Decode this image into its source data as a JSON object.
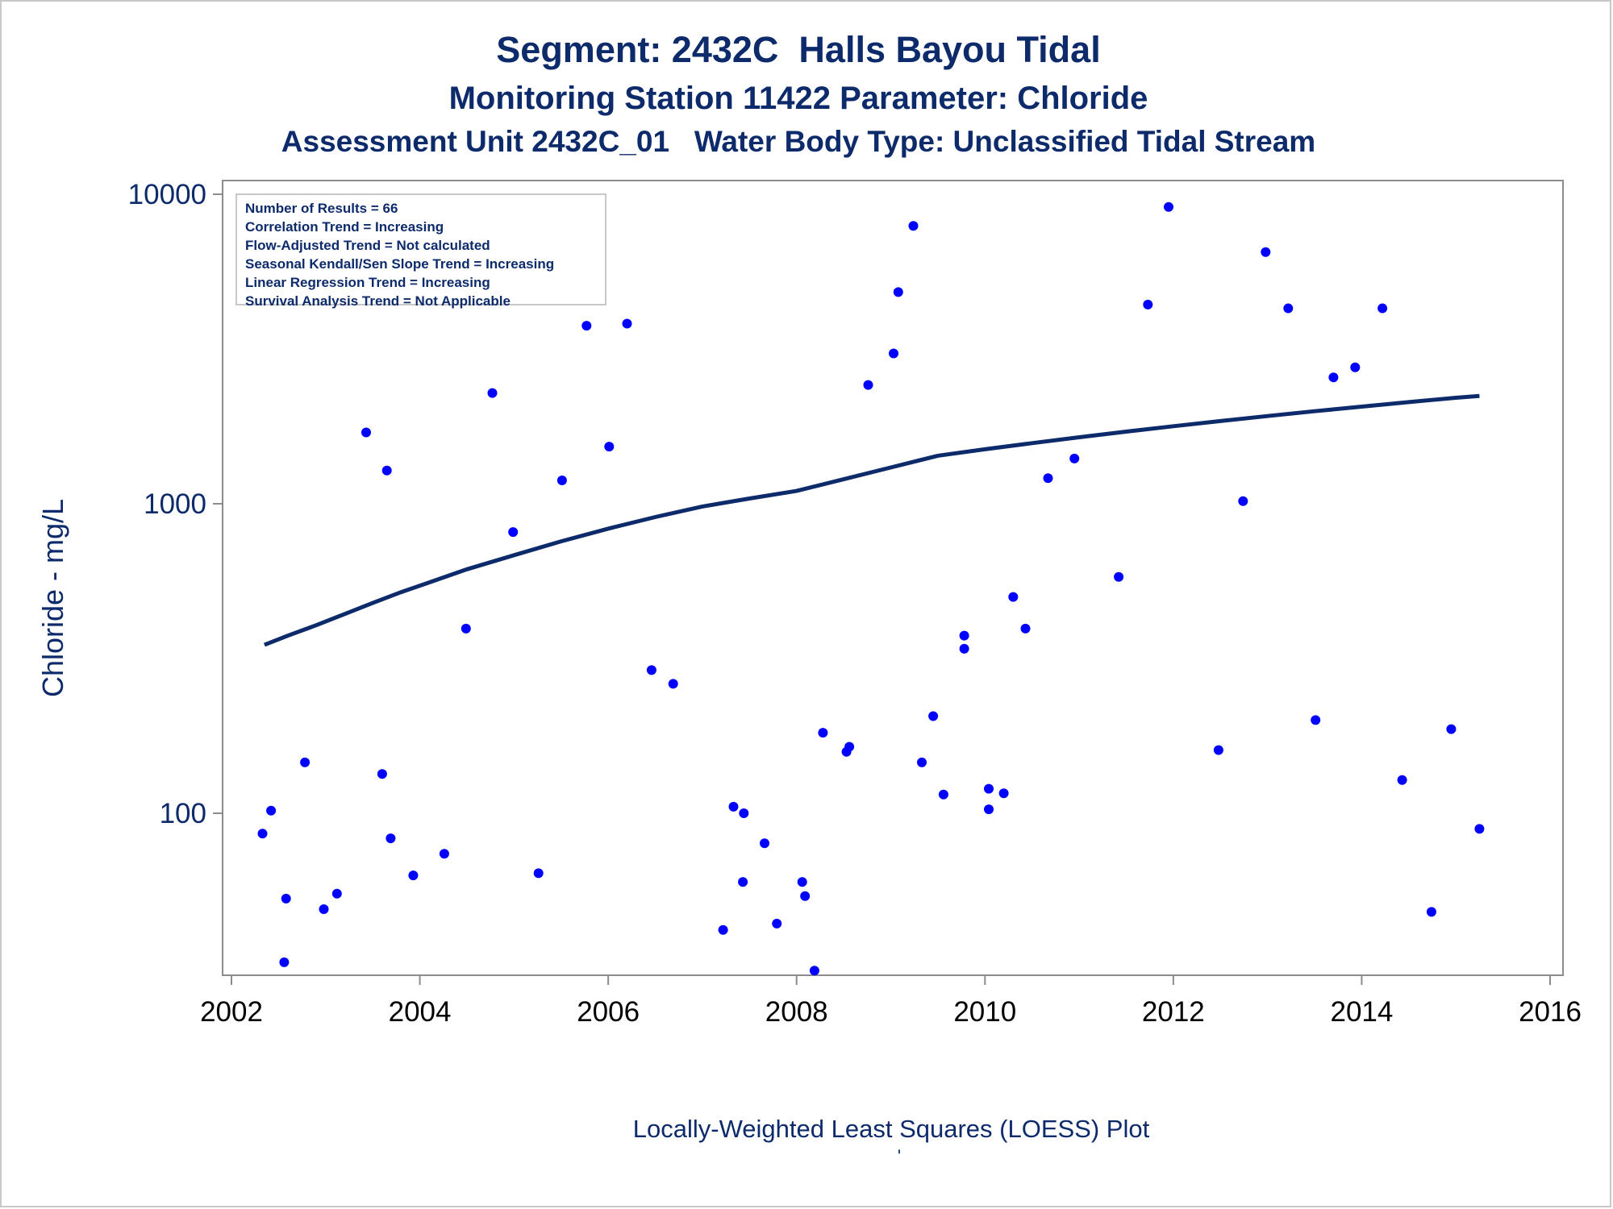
{
  "chart_data": {
    "type": "scatter",
    "title": "Segment: 2432C  Halls Bayou Tidal",
    "subtitle": "Monitoring Station 11422 Parameter: Chloride",
    "subtitle2": "Assessment Unit 2432C_01   Water Body Type: Unclassified Tidal Stream",
    "xlabel": "Locally-Weighted Least Squares (LOESS) Plot",
    "ylabel": "Chloride - mg/L",
    "footnote": "'",
    "xlim": [
      2001.95,
      2016
    ],
    "ylim": [
      32,
      10000
    ],
    "y_scale": "log",
    "x_ticks": [
      2002,
      2004,
      2006,
      2008,
      2010,
      2012,
      2014,
      2016
    ],
    "y_ticks": [
      100,
      1000,
      10000
    ],
    "legend_lines": [
      "Number of Results = 66",
      "Correlation Trend = Increasing",
      "Flow-Adjusted Trend = Not calculated",
      "Seasonal Kendall/Sen Slope Trend = Increasing",
      "Linear Regression Trend = Increasing",
      "Survival Analysis Trend = Not Applicable"
    ],
    "legend_position": "top-left",
    "grid": false,
    "colors": {
      "points": "#0000ff",
      "line": "#0d2a6b",
      "axis": "#8c8c8c",
      "text": "#0d2a6b"
    },
    "points": [
      [
        2002.33,
        86
      ],
      [
        2002.42,
        102
      ],
      [
        2002.56,
        33
      ],
      [
        2002.58,
        53
      ],
      [
        2002.78,
        146
      ],
      [
        2002.98,
        49
      ],
      [
        2003.12,
        55
      ],
      [
        2003.43,
        1700
      ],
      [
        2003.6,
        134
      ],
      [
        2003.65,
        1280
      ],
      [
        2003.69,
        83
      ],
      [
        2003.93,
        63
      ],
      [
        2004.26,
        74
      ],
      [
        2004.49,
        395
      ],
      [
        2004.77,
        2280
      ],
      [
        2004.99,
        810
      ],
      [
        2005.26,
        64
      ],
      [
        2005.51,
        1190
      ],
      [
        2005.77,
        3760
      ],
      [
        2006.01,
        1530
      ],
      [
        2006.2,
        3820
      ],
      [
        2006.46,
        290
      ],
      [
        2006.69,
        262
      ],
      [
        2007.22,
        42
      ],
      [
        2007.33,
        105
      ],
      [
        2007.43,
        60
      ],
      [
        2007.44,
        100
      ],
      [
        2007.66,
        80
      ],
      [
        2007.79,
        44
      ],
      [
        2008.06,
        60
      ],
      [
        2008.09,
        54
      ],
      [
        2008.19,
        31
      ],
      [
        2008.28,
        182
      ],
      [
        2008.53,
        158
      ],
      [
        2008.56,
        164
      ],
      [
        2008.76,
        2420
      ],
      [
        2009.03,
        3060
      ],
      [
        2009.08,
        4830
      ],
      [
        2009.24,
        7900
      ],
      [
        2009.33,
        146
      ],
      [
        2009.45,
        206
      ],
      [
        2009.56,
        115
      ],
      [
        2009.78,
        375
      ],
      [
        2009.78,
        340
      ],
      [
        2010.04,
        120
      ],
      [
        2010.04,
        103
      ],
      [
        2010.2,
        116
      ],
      [
        2010.3,
        500
      ],
      [
        2010.43,
        395
      ],
      [
        2010.67,
        1210
      ],
      [
        2010.95,
        1400
      ],
      [
        2011.42,
        580
      ],
      [
        2011.73,
        4400
      ],
      [
        2011.95,
        9100
      ],
      [
        2012.48,
        160
      ],
      [
        2012.74,
        1020
      ],
      [
        2012.98,
        6500
      ],
      [
        2013.22,
        4280
      ],
      [
        2013.51,
        200
      ],
      [
        2013.7,
        2560
      ],
      [
        2013.93,
        2760
      ],
      [
        2014.22,
        4280
      ],
      [
        2014.43,
        128
      ],
      [
        2014.74,
        48
      ],
      [
        2014.95,
        187
      ],
      [
        2015.25,
        89
      ]
    ],
    "loess": [
      [
        2002.35,
        350
      ],
      [
        2002.6,
        375
      ],
      [
        2002.9,
        405
      ],
      [
        2003.2,
        440
      ],
      [
        2003.5,
        478
      ],
      [
        2003.8,
        518
      ],
      [
        2004.1,
        557
      ],
      [
        2004.5,
        614
      ],
      [
        2005.0,
        682
      ],
      [
        2005.5,
        756
      ],
      [
        2006.0,
        831
      ],
      [
        2006.5,
        906
      ],
      [
        2007.0,
        980
      ],
      [
        2007.5,
        1040
      ],
      [
        2008.0,
        1100
      ],
      [
        2008.5,
        1200
      ],
      [
        2009.0,
        1310
      ],
      [
        2009.5,
        1430
      ],
      [
        2010.0,
        1500
      ],
      [
        2010.5,
        1570
      ],
      [
        2011.0,
        1640
      ],
      [
        2011.5,
        1710
      ],
      [
        2012.0,
        1780
      ],
      [
        2012.5,
        1850
      ],
      [
        2013.0,
        1920
      ],
      [
        2013.5,
        1990
      ],
      [
        2014.0,
        2060
      ],
      [
        2014.5,
        2130
      ],
      [
        2015.0,
        2200
      ],
      [
        2015.25,
        2230
      ]
    ]
  }
}
